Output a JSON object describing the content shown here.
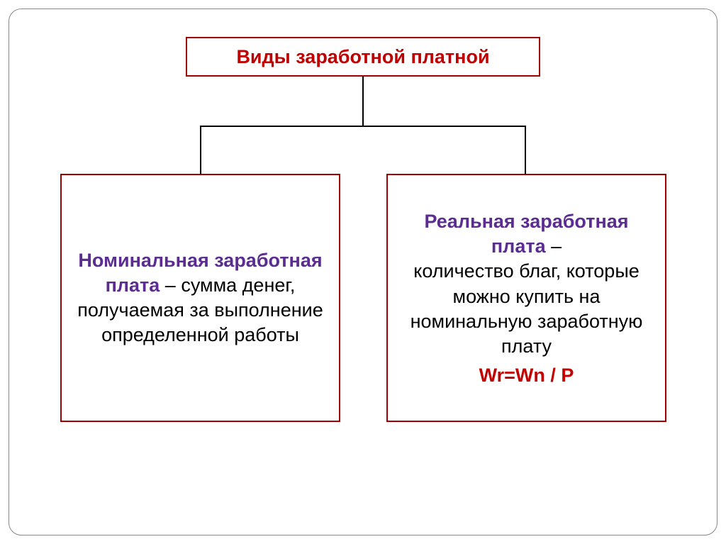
{
  "diagram": {
    "type": "tree",
    "title": "Виды заработной платной",
    "title_color": "#c00000",
    "border_color": "#a00000",
    "heading_color": "#5c2d91",
    "body_color": "#000000",
    "formula_color": "#c00000",
    "background_color": "#ffffff",
    "frame_border_color": "#888888",
    "connector_color": "#000000",
    "title_fontsize": 27,
    "body_fontsize": 27,
    "left_node": {
      "heading": "Номинальная заработная плата",
      "dash": " – ",
      "body": "сумма денег, получаемая за выполнение определенной работы"
    },
    "right_node": {
      "heading": "Реальная заработная плата",
      "dash": " – ",
      "body": "количество благ, которые можно купить на номинальную заработную плату",
      "formula": "Wr=Wn / P"
    }
  }
}
